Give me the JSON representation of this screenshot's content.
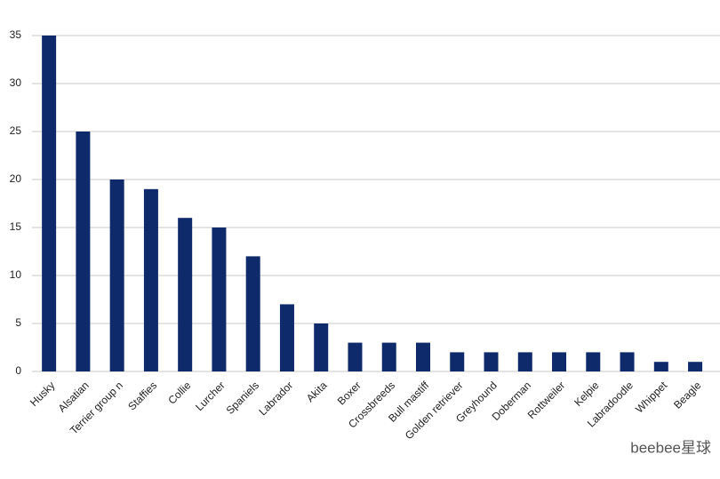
{
  "chart_data": {
    "type": "bar",
    "categories": [
      "Husky",
      "Alsatian",
      "Terrier group n",
      "Staffies",
      "Collie",
      "Lurcher",
      "Spaniels",
      "Labrador",
      "Akita",
      "Boxer",
      "Crossbreeds",
      "Bull mastiff",
      "Golden retriever",
      "Greyhound",
      "Doberman",
      "Rottweiler",
      "Kelpie",
      "Labradoodle",
      "Whippet",
      "Beagle"
    ],
    "values": [
      35,
      25,
      20,
      19,
      16,
      15,
      12,
      7,
      5,
      3,
      3,
      3,
      2,
      2,
      2,
      2,
      2,
      2,
      1,
      1
    ],
    "color": "#0f2a6b",
    "ylim": [
      0,
      35
    ],
    "yticks": [
      0,
      5,
      10,
      15,
      20,
      25,
      30,
      35
    ],
    "grid": true,
    "watermark": "beebee星球"
  }
}
